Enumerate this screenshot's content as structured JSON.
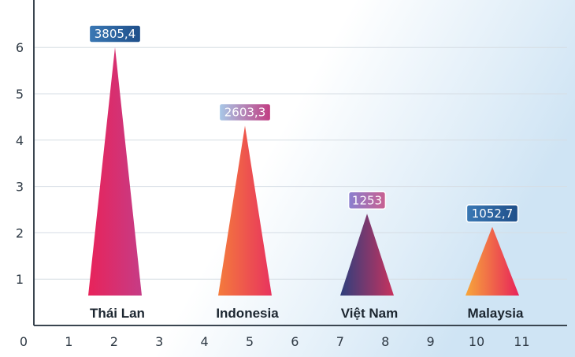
{
  "chart_data": {
    "type": "bar",
    "shape": "triangle",
    "title": "",
    "xlabel": "",
    "ylabel": "",
    "grid": true,
    "y_ticks": [
      "1",
      "2",
      "3",
      "4",
      "5",
      "6"
    ],
    "x_ticks": [
      "0",
      "1",
      "2",
      "3",
      "4",
      "5",
      "6",
      "7",
      "8",
      "9",
      "10",
      "11"
    ],
    "categories": [
      "Thái Lan",
      "Indonesia",
      "Việt Nam",
      "Malaysia"
    ],
    "values": [
      3805.4,
      2603.3,
      1253,
      1052.7
    ],
    "data_labels": [
      "3805,4",
      "2603,3",
      "1253",
      "1052,7"
    ],
    "colors": {
      "bars": [
        [
          "#e8235a",
          "#c63c86"
        ],
        [
          "#f47b3c",
          "#e8335e"
        ],
        [
          "#2d3f7d",
          "#c8325e"
        ],
        [
          "#f7a73a",
          "#e8235a"
        ]
      ],
      "label_boxes": [
        [
          "#3a78b4",
          "#1f4f8a"
        ],
        [
          "#a7c9e8",
          "#c23c82"
        ],
        [
          "#8a7fd0",
          "#c86090"
        ],
        [
          "#3a78b4",
          "#1f4f8a"
        ]
      ],
      "background_top": "#ffffff",
      "background_side": "#cfe4f4",
      "axis": "#3a4550"
    }
  }
}
